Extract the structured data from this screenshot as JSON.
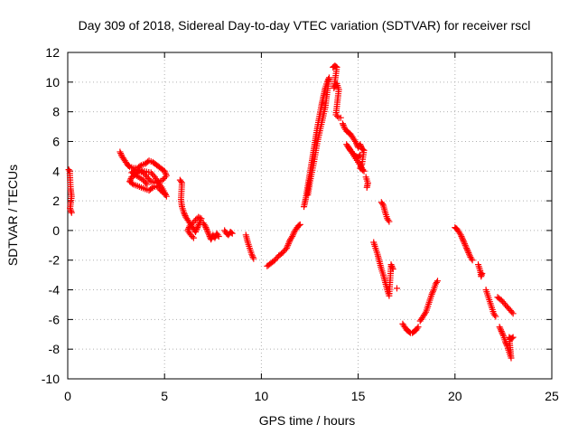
{
  "chart_data": {
    "type": "scatter",
    "title": "Day 309 of 2018, Sidereal Day-to-day VTEC variation (SDTVAR) for receiver rscl",
    "xlabel": "GPS time / hours",
    "ylabel": "SDTVAR / TECUs",
    "xlim": [
      0,
      25
    ],
    "ylim": [
      -10,
      12
    ],
    "x_ticks": [
      0,
      5,
      10,
      15,
      20,
      25
    ],
    "y_ticks": [
      -10,
      -8,
      -6,
      -4,
      -2,
      0,
      2,
      4,
      6,
      8,
      10,
      12
    ],
    "grid": true,
    "marker": "+",
    "series": [
      {
        "name": "SDTVAR",
        "color": "#ff0000",
        "segments": [
          [
            [
              0.05,
              4.1
            ],
            [
              0.1,
              4.0
            ],
            [
              0.15,
              2.8
            ],
            [
              0.2,
              2.3
            ],
            [
              0.12,
              1.5
            ],
            [
              0.2,
              1.2
            ]
          ],
          [
            [
              2.7,
              5.3
            ],
            [
              2.8,
              5.0
            ],
            [
              2.9,
              4.8
            ],
            [
              3.0,
              4.6
            ],
            [
              3.1,
              4.4
            ],
            [
              3.2,
              4.3
            ],
            [
              3.4,
              4.2
            ],
            [
              3.6,
              4.2
            ],
            [
              3.8,
              4.4
            ],
            [
              4.0,
              4.5
            ],
            [
              4.2,
              4.7
            ],
            [
              4.4,
              4.6
            ],
            [
              4.6,
              4.4
            ],
            [
              4.8,
              4.2
            ],
            [
              5.0,
              4.0
            ],
            [
              5.1,
              3.7
            ],
            [
              4.9,
              3.4
            ],
            [
              4.6,
              3.2
            ],
            [
              4.3,
              3.3
            ],
            [
              4.1,
              3.6
            ],
            [
              3.9,
              3.9
            ],
            [
              3.7,
              4.0
            ],
            [
              3.5,
              3.8
            ],
            [
              3.3,
              3.6
            ],
            [
              3.2,
              3.3
            ],
            [
              3.4,
              3.1
            ],
            [
              3.6,
              3.0
            ],
            [
              3.8,
              2.9
            ],
            [
              4.0,
              2.8
            ],
            [
              4.2,
              2.7
            ],
            [
              4.4,
              2.9
            ],
            [
              4.6,
              3.0
            ],
            [
              4.8,
              2.7
            ],
            [
              5.0,
              2.5
            ],
            [
              5.1,
              2.3
            ],
            [
              4.9,
              2.8
            ],
            [
              4.5,
              3.6
            ],
            [
              4.3,
              3.9
            ],
            [
              3.5,
              4.1
            ],
            [
              3.3,
              3.9
            ],
            [
              3.9,
              3.4
            ],
            [
              4.1,
              3.1
            ]
          ],
          [
            [
              5.8,
              3.4
            ],
            [
              5.9,
              3.2
            ],
            [
              5.85,
              2.1
            ],
            [
              5.9,
              1.6
            ],
            [
              6.0,
              1.2
            ],
            [
              6.1,
              0.9
            ],
            [
              6.2,
              0.7
            ],
            [
              6.3,
              0.5
            ],
            [
              6.4,
              0.3
            ],
            [
              6.5,
              0.1
            ],
            [
              6.6,
              -0.1
            ],
            [
              6.7,
              0.2
            ],
            [
              6.8,
              0.5
            ],
            [
              6.9,
              0.8
            ],
            [
              6.75,
              0.9
            ],
            [
              6.6,
              0.7
            ],
            [
              6.45,
              0.5
            ],
            [
              6.3,
              0.3
            ],
            [
              6.2,
              0.0
            ],
            [
              6.35,
              -0.3
            ],
            [
              6.5,
              -0.5
            ]
          ],
          [
            [
              7.0,
              0.5
            ],
            [
              7.1,
              0.3
            ],
            [
              7.2,
              0.0
            ],
            [
              7.3,
              -0.3
            ],
            [
              7.4,
              -0.6
            ],
            [
              7.5,
              -0.3
            ],
            [
              7.6,
              -0.5
            ],
            [
              7.7,
              -0.2
            ],
            [
              7.8,
              -0.4
            ]
          ],
          [
            [
              8.1,
              0.0
            ],
            [
              8.2,
              -0.2
            ],
            [
              8.3,
              -0.3
            ],
            [
              8.4,
              -0.1
            ],
            [
              8.5,
              -0.2
            ]
          ],
          [
            [
              9.2,
              -0.3
            ],
            [
              9.3,
              -0.8
            ],
            [
              9.4,
              -1.2
            ],
            [
              9.5,
              -1.6
            ],
            [
              9.6,
              -1.9
            ]
          ],
          [
            [
              10.3,
              -2.4
            ],
            [
              10.5,
              -2.2
            ],
            [
              10.7,
              -2.0
            ],
            [
              10.9,
              -1.7
            ],
            [
              11.1,
              -1.5
            ],
            [
              11.3,
              -1.2
            ],
            [
              11.4,
              -0.9
            ],
            [
              11.5,
              -0.6
            ],
            [
              11.6,
              -0.4
            ],
            [
              11.7,
              -0.1
            ],
            [
              11.8,
              0.1
            ],
            [
              11.9,
              0.3
            ],
            [
              12.0,
              0.4
            ]
          ],
          [
            [
              12.2,
              1.6
            ],
            [
              12.3,
              2.2
            ],
            [
              12.4,
              3.0
            ],
            [
              12.5,
              3.8
            ],
            [
              12.6,
              4.6
            ],
            [
              12.7,
              5.4
            ],
            [
              12.8,
              6.2
            ],
            [
              12.9,
              7.0
            ],
            [
              13.0,
              7.7
            ],
            [
              13.1,
              8.4
            ],
            [
              13.2,
              9.0
            ],
            [
              13.3,
              9.6
            ],
            [
              13.4,
              10.0
            ],
            [
              13.5,
              10.3
            ],
            [
              13.3,
              8.3
            ],
            [
              12.9,
              6.0
            ],
            [
              12.7,
              4.5
            ],
            [
              12.5,
              3.2
            ],
            [
              12.4,
              2.4
            ]
          ],
          [
            [
              13.7,
              11.0
            ],
            [
              13.8,
              11.1
            ],
            [
              13.9,
              11.0
            ],
            [
              13.75,
              9.6
            ],
            [
              13.9,
              9.9
            ],
            [
              14.0,
              9.5
            ],
            [
              13.85,
              7.8
            ],
            [
              14.0,
              7.6
            ],
            [
              14.1,
              7.6
            ]
          ],
          [
            [
              14.2,
              7.2
            ],
            [
              14.3,
              6.9
            ],
            [
              14.4,
              6.7
            ],
            [
              14.5,
              6.6
            ],
            [
              14.6,
              6.5
            ],
            [
              14.7,
              6.3
            ],
            [
              14.8,
              6.1
            ],
            [
              14.9,
              5.9
            ],
            [
              15.0,
              5.6
            ],
            [
              15.1,
              5.8
            ],
            [
              15.2,
              5.5
            ],
            [
              15.3,
              5.4
            ],
            [
              15.2,
              4.5
            ],
            [
              15.1,
              4.2
            ],
            [
              15.3,
              4.0
            ],
            [
              14.4,
              5.8
            ],
            [
              14.6,
              5.4
            ],
            [
              14.8,
              5.1
            ],
            [
              15.0,
              4.9
            ],
            [
              15.1,
              5.1
            ]
          ],
          [
            [
              15.4,
              3.6
            ],
            [
              15.5,
              3.2
            ],
            [
              15.45,
              2.9
            ]
          ],
          [
            [
              16.2,
              1.9
            ],
            [
              16.3,
              1.7
            ],
            [
              16.4,
              1.2
            ],
            [
              16.5,
              0.8
            ],
            [
              16.6,
              0.6
            ]
          ],
          [
            [
              15.8,
              -0.8
            ],
            [
              15.9,
              -1.2
            ],
            [
              16.0,
              -1.6
            ],
            [
              16.1,
              -2.1
            ],
            [
              16.2,
              -2.6
            ],
            [
              16.3,
              -3.0
            ],
            [
              16.4,
              -3.5
            ],
            [
              16.5,
              -4.0
            ],
            [
              16.6,
              -4.4
            ],
            [
              16.7,
              -2.3
            ],
            [
              16.8,
              -2.6
            ]
          ],
          [
            [
              17.0,
              -3.9
            ]
          ],
          [
            [
              17.3,
              -6.3
            ],
            [
              17.4,
              -6.5
            ],
            [
              17.5,
              -6.7
            ],
            [
              17.6,
              -6.8
            ],
            [
              17.7,
              -6.9
            ],
            [
              17.8,
              -6.9
            ],
            [
              17.9,
              -6.8
            ],
            [
              18.0,
              -6.7
            ],
            [
              18.1,
              -6.5
            ]
          ],
          [
            [
              18.2,
              -6.1
            ],
            [
              18.3,
              -5.9
            ],
            [
              18.4,
              -5.7
            ],
            [
              18.5,
              -5.5
            ],
            [
              18.6,
              -5.1
            ],
            [
              18.7,
              -4.7
            ],
            [
              18.8,
              -4.3
            ],
            [
              18.9,
              -4.0
            ],
            [
              19.0,
              -3.6
            ],
            [
              19.1,
              -3.4
            ]
          ],
          [
            [
              20.0,
              0.2
            ],
            [
              20.1,
              0.1
            ],
            [
              20.2,
              -0.1
            ],
            [
              20.3,
              -0.3
            ],
            [
              20.4,
              -0.6
            ],
            [
              20.5,
              -0.9
            ],
            [
              20.6,
              -1.2
            ],
            [
              20.7,
              -1.5
            ],
            [
              20.8,
              -1.8
            ],
            [
              20.9,
              -2.0
            ]
          ],
          [
            [
              21.2,
              -2.3
            ],
            [
              21.3,
              -2.7
            ],
            [
              21.35,
              -3.1
            ],
            [
              21.4,
              -2.9
            ]
          ],
          [
            [
              21.6,
              -4.0
            ],
            [
              21.7,
              -4.4
            ],
            [
              21.8,
              -4.8
            ],
            [
              21.9,
              -5.2
            ],
            [
              22.0,
              -5.6
            ],
            [
              22.1,
              -5.8
            ]
          ],
          [
            [
              22.2,
              -4.5
            ],
            [
              22.4,
              -4.7
            ],
            [
              22.6,
              -5.0
            ],
            [
              22.8,
              -5.3
            ],
            [
              23.0,
              -5.6
            ]
          ],
          [
            [
              22.3,
              -6.5
            ],
            [
              22.4,
              -6.8
            ],
            [
              22.5,
              -7.1
            ],
            [
              22.6,
              -7.5
            ],
            [
              22.7,
              -7.8
            ],
            [
              22.8,
              -8.2
            ],
            [
              22.9,
              -8.6
            ],
            [
              22.8,
              -7.2
            ],
            [
              22.9,
              -7.3
            ],
            [
              23.0,
              -7.2
            ]
          ]
        ]
      }
    ]
  }
}
